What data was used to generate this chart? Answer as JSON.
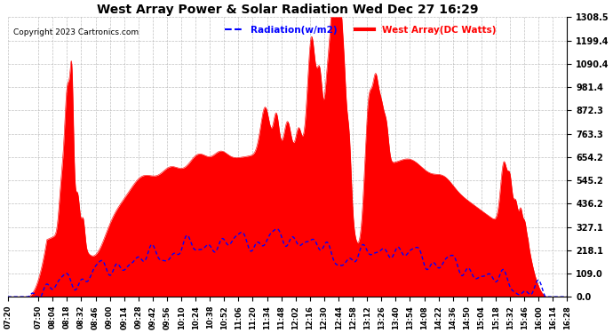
{
  "title": "West Array Power & Solar Radiation Wed Dec 27 16:29",
  "copyright": "Copyright 2023 Cartronics.com",
  "legend_radiation": "Radiation(w/m2)",
  "legend_west": "West Array(DC Watts)",
  "ylabel_right_ticks": [
    0.0,
    109.0,
    218.1,
    327.1,
    436.2,
    545.2,
    654.2,
    763.3,
    872.3,
    981.4,
    1090.4,
    1199.4,
    1308.5
  ],
  "ymax": 1308.5,
  "ymin": 0.0,
  "background_color": "#ffffff",
  "plot_bg_color": "#ffffff",
  "grid_color": "#b0b0b0",
  "red_color": "#ff0000",
  "blue_color": "#0000ff",
  "title_color": "#000000",
  "x_tick_labels": [
    "07:20",
    "07:50",
    "08:04",
    "08:18",
    "08:32",
    "08:46",
    "09:00",
    "09:14",
    "09:28",
    "09:42",
    "09:56",
    "10:10",
    "10:24",
    "10:38",
    "10:52",
    "11:06",
    "11:20",
    "11:34",
    "11:48",
    "12:02",
    "12:16",
    "12:30",
    "12:44",
    "12:58",
    "13:12",
    "13:26",
    "13:40",
    "13:54",
    "14:08",
    "14:22",
    "14:36",
    "14:50",
    "15:04",
    "15:18",
    "15:32",
    "15:46",
    "16:00",
    "16:14",
    "16:28"
  ]
}
